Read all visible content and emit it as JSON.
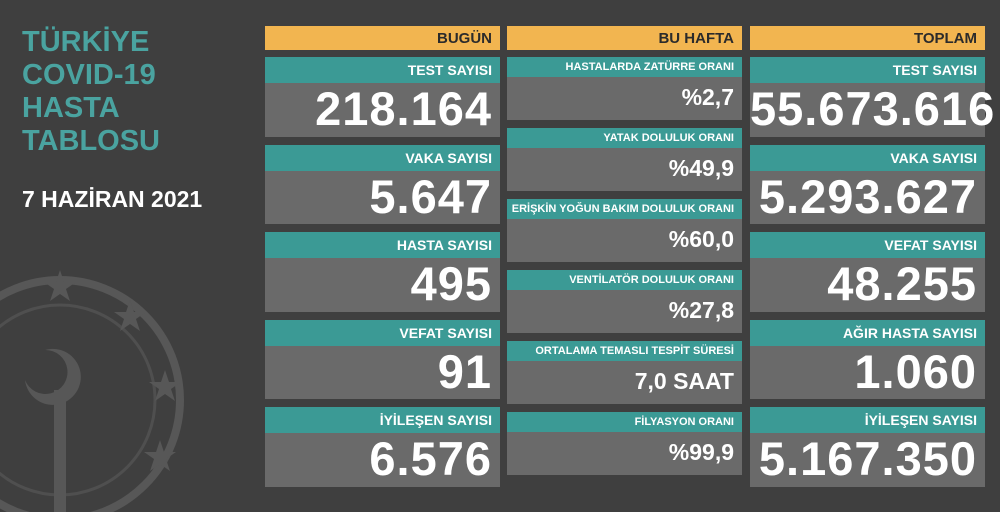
{
  "title_lines": [
    "TÜRKİYE",
    "COVID-19",
    "HASTA",
    "TABLOSU"
  ],
  "date": "7 HAZİRAN 2021",
  "columns": [
    {
      "header": "BUGÜN",
      "items": [
        {
          "label": "TEST SAYISI",
          "value": "218.164"
        },
        {
          "label": "VAKA SAYISI",
          "value": "5.647"
        },
        {
          "label": "HASTA SAYISI",
          "value": "495"
        },
        {
          "label": "VEFAT SAYISI",
          "value": "91"
        },
        {
          "label": "İYİLEŞEN SAYISI",
          "value": "6.576"
        }
      ]
    },
    {
      "header": "BU HAFTA",
      "items": [
        {
          "label": "HASTALARDA ZATÜRRE ORANI",
          "value": "%2,7"
        },
        {
          "label": "YATAK DOLULUK ORANI",
          "value": "%49,9"
        },
        {
          "label": "ERİŞKİN YOĞUN BAKIM DOLULUK ORANI",
          "value": "%60,0"
        },
        {
          "label": "VENTİLATÖR DOLULUK ORANI",
          "value": "%27,8"
        },
        {
          "label": "ORTALAMA TEMASLI TESPİT SÜRESİ",
          "value": "7,0 SAAT"
        },
        {
          "label": "FİLYASYON ORANI",
          "value": "%99,9"
        }
      ]
    },
    {
      "header": "TOPLAM",
      "items": [
        {
          "label": "TEST SAYISI",
          "value": "55.673.616"
        },
        {
          "label": "VAKA SAYISI",
          "value": "5.293.627"
        },
        {
          "label": "VEFAT SAYISI",
          "value": "48.255"
        },
        {
          "label": "AĞIR HASTA SAYISI",
          "value": "1.060"
        },
        {
          "label": "İYİLEŞEN SAYISI",
          "value": "5.167.350"
        }
      ]
    }
  ]
}
